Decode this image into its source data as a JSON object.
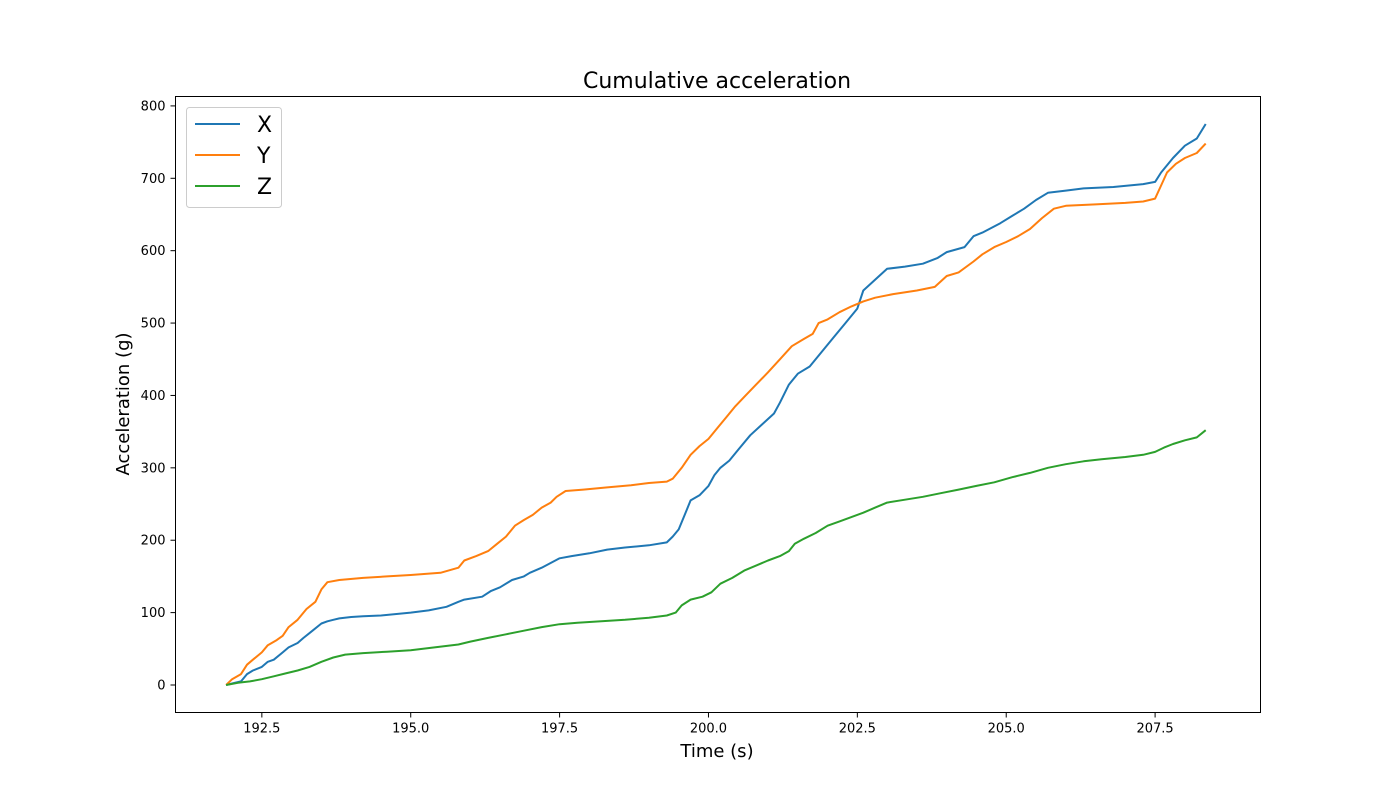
{
  "chart_data": {
    "type": "line",
    "title": "Cumulative acceleration",
    "xlabel": "Time (s)",
    "ylabel": "Acceleration (g)",
    "xlim": [
      191.05,
      209.27
    ],
    "ylim": [
      -38,
      813
    ],
    "xticks": [
      192.5,
      195.0,
      197.5,
      200.0,
      202.5,
      205.0,
      207.5
    ],
    "xtick_labels": [
      "192.5",
      "195.0",
      "197.5",
      "200.0",
      "202.5",
      "205.0",
      "207.5"
    ],
    "yticks": [
      0,
      100,
      200,
      300,
      400,
      500,
      600,
      700,
      800
    ],
    "ytick_labels": [
      "0",
      "100",
      "200",
      "300",
      "400",
      "500",
      "600",
      "700",
      "800"
    ],
    "grid": false,
    "legend_position": "top-left",
    "series": [
      {
        "name": "X",
        "color": "#1f77b4",
        "x": [
          191.9,
          192.0,
          192.15,
          192.25,
          192.35,
          192.5,
          192.6,
          192.7,
          192.85,
          192.95,
          193.1,
          193.2,
          193.35,
          193.5,
          193.6,
          193.7,
          193.8,
          194.0,
          194.2,
          194.5,
          195.0,
          195.3,
          195.6,
          195.8,
          195.9,
          196.2,
          196.35,
          196.5,
          196.7,
          196.9,
          197.0,
          197.2,
          197.5,
          197.7,
          198.0,
          198.3,
          198.6,
          199.0,
          199.3,
          199.4,
          199.5,
          199.6,
          199.7,
          199.85,
          200.0,
          200.1,
          200.2,
          200.35,
          200.5,
          200.7,
          200.9,
          201.1,
          201.2,
          201.35,
          201.5,
          201.7,
          201.9,
          202.1,
          202.3,
          202.5,
          202.6,
          202.8,
          203.0,
          203.3,
          203.6,
          203.85,
          204.0,
          204.3,
          204.45,
          204.6,
          204.9,
          205.1,
          205.3,
          205.5,
          205.7,
          206.0,
          206.3,
          206.8,
          207.3,
          207.5,
          207.6,
          207.8,
          208.0,
          208.2,
          208.35
        ],
        "y": [
          0,
          2,
          5,
          15,
          20,
          25,
          32,
          35,
          45,
          52,
          58,
          65,
          75,
          85,
          88,
          90,
          92,
          94,
          95,
          96,
          100,
          103,
          108,
          115,
          118,
          122,
          130,
          135,
          145,
          150,
          155,
          162,
          175,
          178,
          182,
          187,
          190,
          193,
          197,
          205,
          215,
          235,
          255,
          262,
          275,
          290,
          300,
          310,
          325,
          345,
          360,
          375,
          390,
          415,
          430,
          440,
          460,
          480,
          500,
          520,
          545,
          560,
          575,
          578,
          582,
          590,
          598,
          605,
          620,
          625,
          638,
          648,
          658,
          670,
          680,
          683,
          686,
          688,
          692,
          695,
          708,
          728,
          745,
          755,
          775
        ]
      },
      {
        "name": "Y",
        "color": "#ff7f0e",
        "x": [
          191.9,
          192.0,
          192.15,
          192.25,
          192.35,
          192.5,
          192.6,
          192.75,
          192.85,
          192.95,
          193.1,
          193.25,
          193.4,
          193.5,
          193.6,
          193.8,
          194.2,
          194.6,
          195.0,
          195.5,
          195.8,
          195.9,
          196.1,
          196.3,
          196.45,
          196.6,
          196.75,
          196.9,
          197.05,
          197.2,
          197.35,
          197.45,
          197.6,
          197.9,
          198.3,
          198.7,
          199.0,
          199.3,
          199.4,
          199.55,
          199.7,
          199.85,
          200.0,
          200.15,
          200.3,
          200.45,
          200.6,
          200.8,
          201.0,
          201.2,
          201.4,
          201.6,
          201.75,
          201.85,
          202.0,
          202.2,
          202.4,
          202.6,
          202.8,
          203.1,
          203.5,
          203.8,
          204.0,
          204.2,
          204.45,
          204.6,
          204.8,
          205.0,
          205.2,
          205.4,
          205.6,
          205.8,
          206.0,
          206.5,
          207.0,
          207.3,
          207.5,
          207.6,
          207.7,
          207.85,
          208.0,
          208.2,
          208.35
        ],
        "y": [
          0,
          8,
          15,
          28,
          35,
          45,
          55,
          62,
          68,
          80,
          90,
          105,
          115,
          132,
          142,
          145,
          148,
          150,
          152,
          155,
          162,
          172,
          178,
          185,
          195,
          205,
          220,
          228,
          235,
          245,
          252,
          260,
          268,
          270,
          273,
          276,
          279,
          281,
          285,
          300,
          318,
          330,
          340,
          355,
          370,
          385,
          398,
          415,
          432,
          450,
          468,
          478,
          485,
          500,
          505,
          515,
          523,
          530,
          535,
          540,
          545,
          550,
          565,
          570,
          585,
          595,
          605,
          612,
          620,
          630,
          645,
          658,
          662,
          664,
          666,
          668,
          672,
          690,
          708,
          720,
          728,
          735,
          748
        ]
      },
      {
        "name": "Z",
        "color": "#2ca02c",
        "x": [
          191.9,
          192.1,
          192.3,
          192.5,
          192.7,
          192.9,
          193.1,
          193.3,
          193.5,
          193.7,
          193.9,
          194.2,
          194.6,
          195.0,
          195.4,
          195.8,
          196.0,
          196.3,
          196.6,
          196.9,
          197.2,
          197.5,
          197.8,
          198.2,
          198.6,
          199.0,
          199.3,
          199.45,
          199.55,
          199.7,
          199.9,
          200.05,
          200.2,
          200.4,
          200.6,
          200.8,
          201.0,
          201.2,
          201.35,
          201.45,
          201.6,
          201.8,
          202.0,
          202.2,
          202.4,
          202.6,
          202.8,
          203.0,
          203.3,
          203.6,
          203.9,
          204.2,
          204.5,
          204.8,
          205.1,
          205.4,
          205.7,
          206.0,
          206.3,
          206.6,
          207.0,
          207.3,
          207.5,
          207.65,
          207.8,
          208.0,
          208.2,
          208.35
        ],
        "y": [
          0,
          3,
          5,
          8,
          12,
          16,
          20,
          25,
          32,
          38,
          42,
          44,
          46,
          48,
          52,
          56,
          60,
          65,
          70,
          75,
          80,
          84,
          86,
          88,
          90,
          93,
          96,
          100,
          110,
          118,
          122,
          128,
          140,
          148,
          158,
          165,
          172,
          178,
          185,
          195,
          202,
          210,
          220,
          226,
          232,
          238,
          245,
          252,
          256,
          260,
          265,
          270,
          275,
          280,
          287,
          293,
          300,
          305,
          309,
          312,
          315,
          318,
          322,
          328,
          333,
          338,
          342,
          352
        ]
      }
    ]
  }
}
